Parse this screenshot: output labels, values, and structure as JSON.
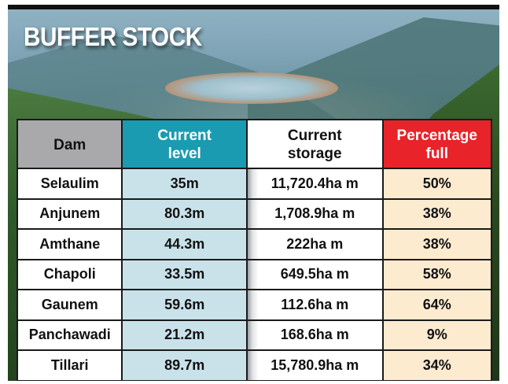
{
  "title": "BUFFER STOCK",
  "colors": {
    "dam_header_bg": "#a9a9ac",
    "level_header_bg": "#1b9bb1",
    "storage_header_bg": "#ffffff",
    "pct_header_bg": "#e8232a",
    "level_cell_bg": "#c9e2ea",
    "pct_cell_bg": "#fdebd0",
    "pct_text": "#e3262d"
  },
  "table": {
    "headers": {
      "dam": "Dam",
      "level_line1": "Current",
      "level_line2": "level",
      "storage_line1": "Current",
      "storage_line2": "storage",
      "pct_line1": "Percentage",
      "pct_line2": "full"
    },
    "rows": [
      {
        "dam": "Selaulim",
        "level": "35m",
        "storage": "11,720.4ha m",
        "pct": "50%"
      },
      {
        "dam": "Anjunem",
        "level": "80.3m",
        "storage": "1,708.9ha m",
        "pct": "38%"
      },
      {
        "dam": "Amthane",
        "level": "44.3m",
        "storage": "222ha m",
        "pct": "38%"
      },
      {
        "dam": "Chapoli",
        "level": "33.5m",
        "storage": "649.5ha m",
        "pct": "58%"
      },
      {
        "dam": "Gaunem",
        "level": "59.6m",
        "storage": "112.6ha m",
        "pct": "64%"
      },
      {
        "dam": "Panchawadi",
        "level": "21.2m",
        "storage": "168.6ha m",
        "pct": "9%"
      },
      {
        "dam": "Tillari",
        "level": "89.7m",
        "storage": "15,780.9ha m",
        "pct": "34%"
      }
    ]
  },
  "chart_data": {
    "type": "table",
    "title": "BUFFER STOCK",
    "columns": [
      "Dam",
      "Current level",
      "Current storage",
      "Percentage full"
    ],
    "rows": [
      [
        "Selaulim",
        "35m",
        "11,720.4ha m",
        "50%"
      ],
      [
        "Anjunem",
        "80.3m",
        "1,708.9ha m",
        "38%"
      ],
      [
        "Amthane",
        "44.3m",
        "222ha m",
        "38%"
      ],
      [
        "Chapoli",
        "33.5m",
        "649.5ha m",
        "58%"
      ],
      [
        "Gaunem",
        "59.6m",
        "112.6ha m",
        "64%"
      ],
      [
        "Panchawadi",
        "21.2m",
        "168.6ha m",
        "9%"
      ],
      [
        "Tillari",
        "89.7m",
        "15,780.9ha m",
        "34%"
      ]
    ]
  }
}
